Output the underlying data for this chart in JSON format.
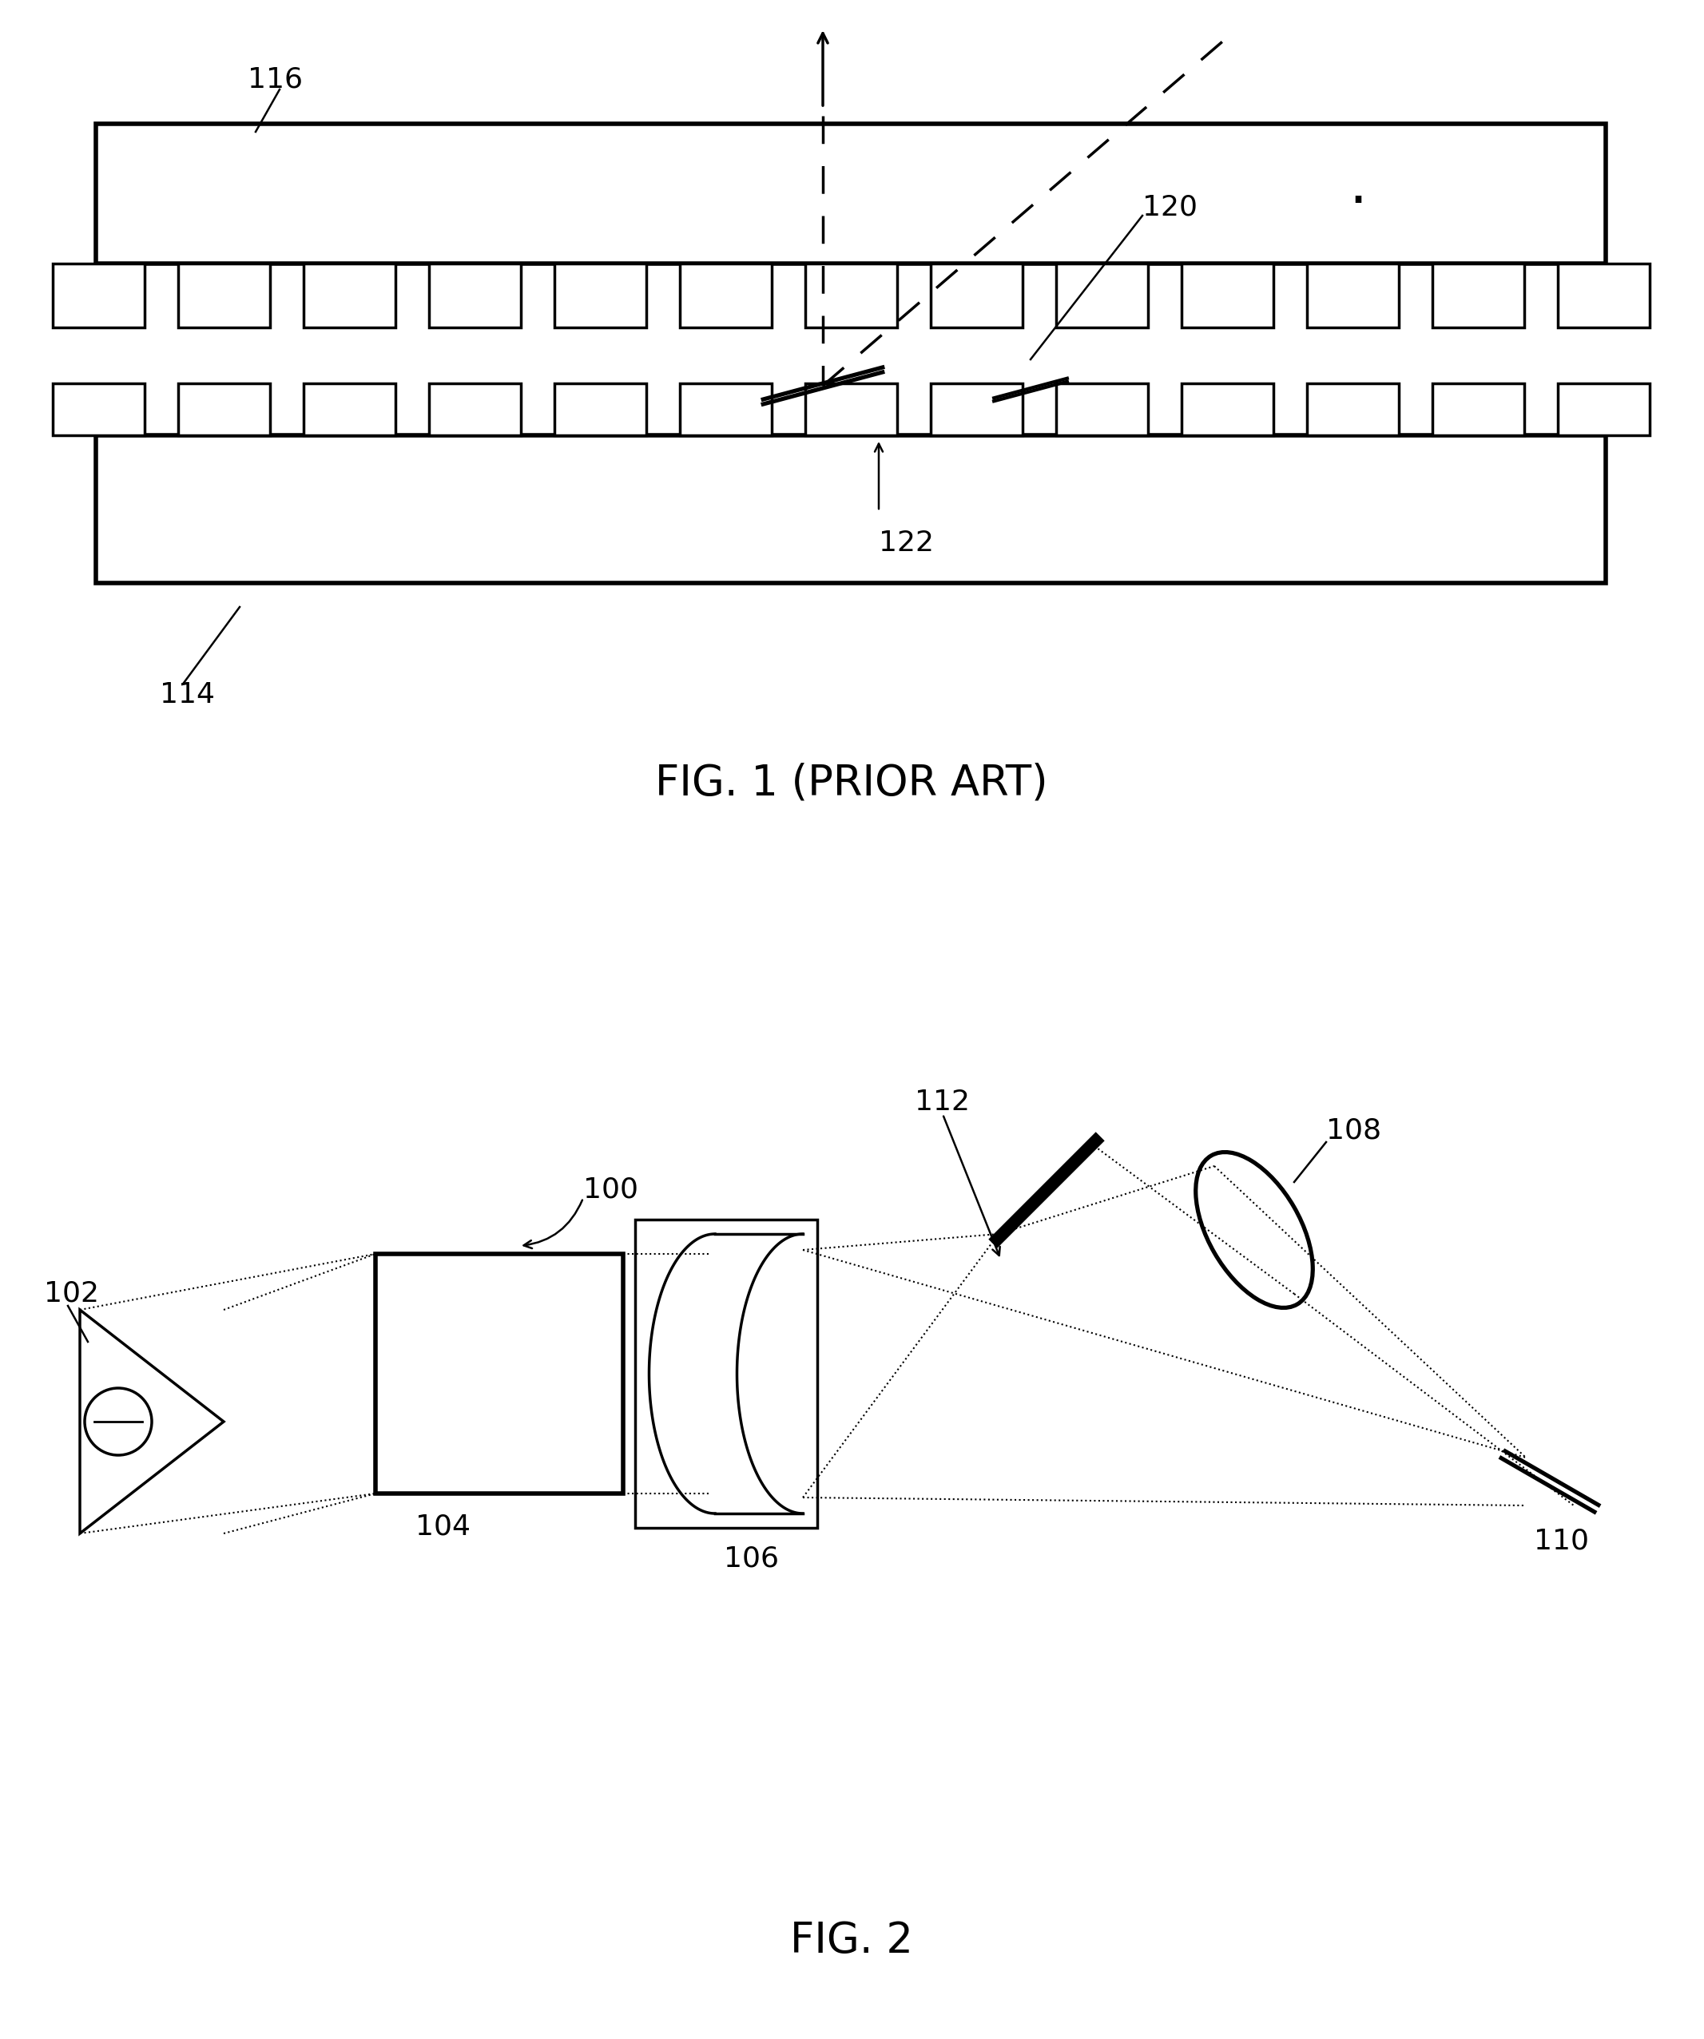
{
  "background_color": "#ffffff",
  "line_color": "#000000",
  "label_fontsize": 26,
  "title_fontsize": 38,
  "fig1_title": "FIG. 1 (PRIOR ART)",
  "fig2_title": "FIG. 2"
}
